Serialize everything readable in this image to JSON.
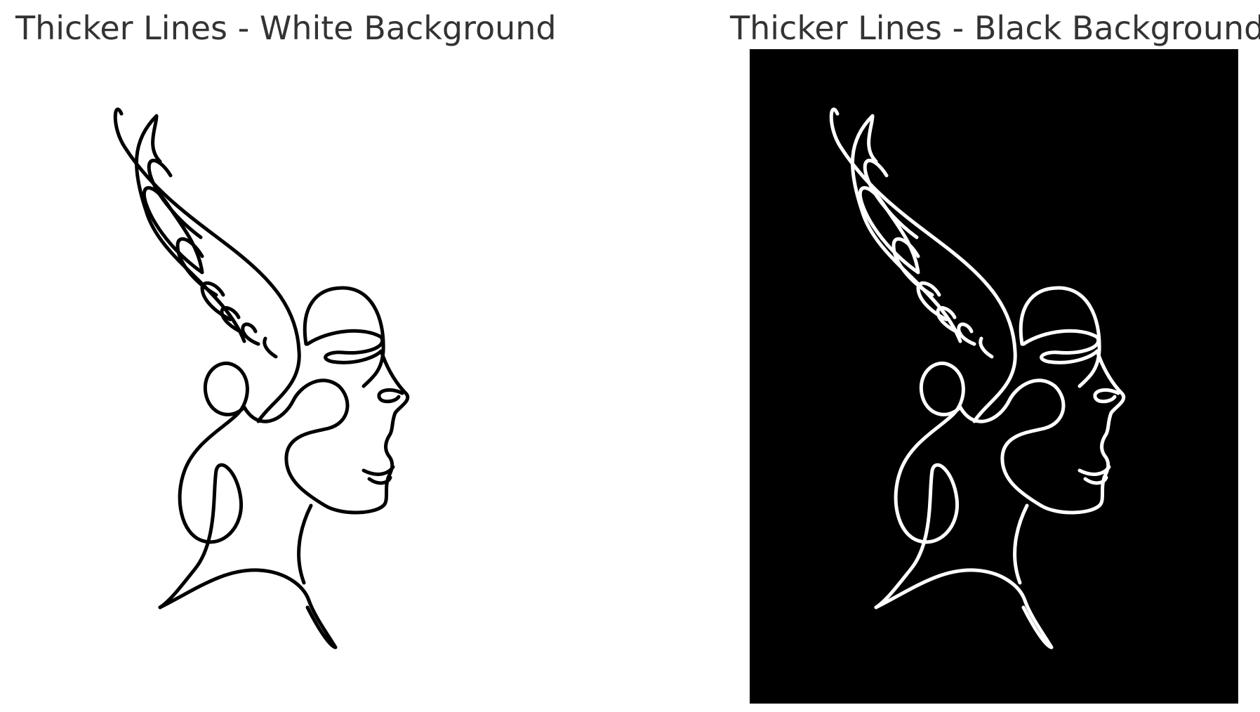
{
  "panels": [
    {
      "title": "Thicker Lines - White Background",
      "background": "#ffffff",
      "line_color": "#000000",
      "image_icon": "line-art-face-with-wing-icon"
    },
    {
      "title": "Thicker Lines - Black Background",
      "background": "#000000",
      "line_color": "#ffffff",
      "image_icon": "line-art-face-with-wing-icon"
    }
  ]
}
